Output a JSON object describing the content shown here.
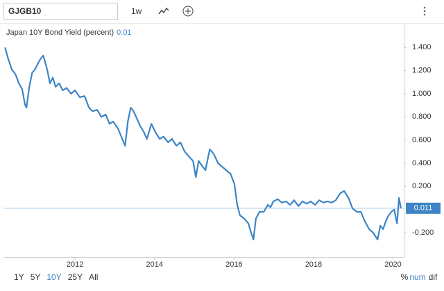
{
  "toolbar": {
    "symbol": "GJGB10",
    "interval": "1w"
  },
  "chart_data": {
    "type": "line",
    "legend_value": 0.01,
    "last_value": 0.011,
    "x": [
      2010.24,
      2010.32,
      2010.41,
      2010.5,
      2010.59,
      2010.67,
      2010.74,
      2010.78,
      2010.85,
      2010.92,
      2010.99,
      2011.08,
      2011.13,
      2011.2,
      2011.25,
      2011.3,
      2011.37,
      2011.44,
      2011.51,
      2011.6,
      2011.69,
      2011.79,
      2011.9,
      2012.0,
      2012.12,
      2012.24,
      2012.35,
      2012.44,
      2012.56,
      2012.66,
      2012.77,
      2012.87,
      2012.96,
      2013.08,
      2013.19,
      2013.26,
      2013.33,
      2013.4,
      2013.47,
      2013.55,
      2013.64,
      2013.73,
      2013.81,
      2013.92,
      2014.02,
      2014.13,
      2014.23,
      2014.34,
      2014.44,
      2014.55,
      2014.65,
      2014.76,
      2014.86,
      2014.97,
      2015.04,
      2015.11,
      2015.21,
      2015.28,
      2015.39,
      2015.49,
      2015.6,
      2015.7,
      2015.8,
      2015.91,
      2016.01,
      2016.08,
      2016.15,
      2016.26,
      2016.36,
      2016.43,
      2016.49,
      2016.55,
      2016.64,
      2016.75,
      2016.85,
      2016.92,
      2016.99,
      2017.1,
      2017.2,
      2017.31,
      2017.41,
      2017.51,
      2017.62,
      2017.72,
      2017.83,
      2017.93,
      2018.04,
      2018.14,
      2018.25,
      2018.35,
      2018.46,
      2018.56,
      2018.67,
      2018.77,
      2018.88,
      2018.98,
      2019.09,
      2019.19,
      2019.29,
      2019.4,
      2019.5,
      2019.61,
      2019.68,
      2019.75,
      2019.82,
      2019.89,
      2019.96,
      2020.03,
      2020.1,
      2020.15,
      2020.2
    ],
    "series": [
      {
        "name": "Japan 10Y Bond Yield (percent)",
        "color": "#3d85c6",
        "values": [
          1.4,
          1.3,
          1.21,
          1.17,
          1.09,
          1.04,
          0.91,
          0.88,
          1.06,
          1.18,
          1.21,
          1.27,
          1.3,
          1.33,
          1.27,
          1.21,
          1.09,
          1.14,
          1.06,
          1.09,
          1.03,
          1.05,
          1.0,
          1.03,
          0.97,
          0.98,
          0.88,
          0.85,
          0.86,
          0.8,
          0.82,
          0.74,
          0.76,
          0.7,
          0.61,
          0.55,
          0.76,
          0.88,
          0.85,
          0.79,
          0.72,
          0.67,
          0.61,
          0.74,
          0.67,
          0.61,
          0.63,
          0.58,
          0.61,
          0.55,
          0.58,
          0.5,
          0.46,
          0.42,
          0.28,
          0.42,
          0.37,
          0.34,
          0.52,
          0.48,
          0.4,
          0.37,
          0.34,
          0.31,
          0.22,
          0.04,
          -0.05,
          -0.08,
          -0.12,
          -0.2,
          -0.26,
          -0.08,
          -0.02,
          -0.02,
          0.04,
          0.02,
          0.07,
          0.09,
          0.06,
          0.07,
          0.04,
          0.08,
          0.03,
          0.07,
          0.05,
          0.07,
          0.04,
          0.08,
          0.06,
          0.07,
          0.06,
          0.08,
          0.14,
          0.16,
          0.1,
          0.01,
          -0.02,
          -0.02,
          -0.1,
          -0.17,
          -0.2,
          -0.26,
          -0.14,
          -0.17,
          -0.1,
          -0.05,
          -0.02,
          0.0,
          -0.12,
          0.1,
          0.01
        ]
      }
    ],
    "xlim": [
      2010.2,
      2020.27
    ],
    "xticks": [
      2012,
      2014,
      2016,
      2018,
      2020
    ],
    "ylim": [
      -0.41,
      1.6
    ],
    "yticks": [
      {
        "value": -0.2,
        "label": "-0.200"
      },
      {
        "value": 0.2,
        "label": "0.200"
      },
      {
        "value": 0.4,
        "label": "0.400"
      },
      {
        "value": 0.6,
        "label": "0.600"
      },
      {
        "value": 0.8,
        "label": "0.800"
      },
      {
        "value": 1.0,
        "label": "1.000"
      },
      {
        "value": 1.2,
        "label": "1.200"
      },
      {
        "value": 1.4,
        "label": "1.400"
      }
    ]
  },
  "ranges": {
    "options": [
      "1Y",
      "5Y",
      "10Y",
      "25Y",
      "All"
    ],
    "selected": 2
  },
  "units": {
    "options": [
      "%",
      "num",
      "dif"
    ],
    "selected": 1
  }
}
